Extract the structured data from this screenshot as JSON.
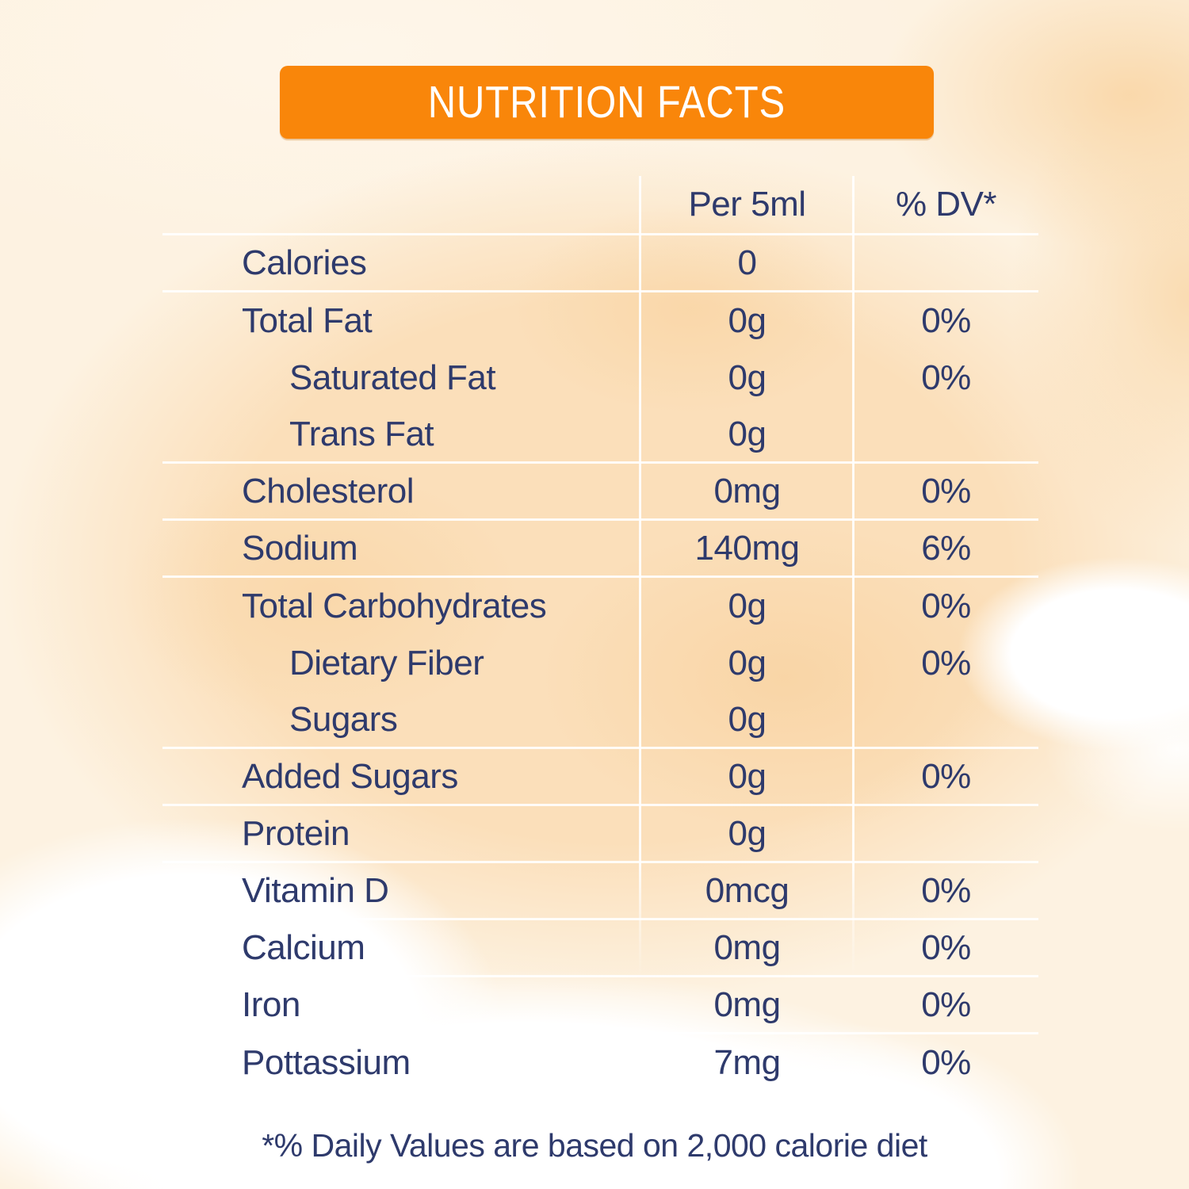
{
  "header": {
    "title": "NUTRITION FACTS"
  },
  "table": {
    "columns": {
      "amount": "Per 5ml",
      "dv": "% DV*"
    },
    "rows": [
      {
        "label": "Calories",
        "amount": "0",
        "dv": "",
        "indent": false,
        "line_after": true
      },
      {
        "label": "Total Fat",
        "amount": "0g",
        "dv": "0%",
        "indent": false,
        "line_after": false
      },
      {
        "label": "Saturated Fat",
        "amount": "0g",
        "dv": "0%",
        "indent": true,
        "line_after": false
      },
      {
        "label": "Trans Fat",
        "amount": "0g",
        "dv": "",
        "indent": true,
        "line_after": true
      },
      {
        "label": "Cholesterol",
        "amount": "0mg",
        "dv": "0%",
        "indent": false,
        "line_after": true
      },
      {
        "label": "Sodium",
        "amount": "140mg",
        "dv": "6%",
        "indent": false,
        "line_after": true
      },
      {
        "label": "Total Carbohydrates",
        "amount": "0g",
        "dv": "0%",
        "indent": false,
        "line_after": false
      },
      {
        "label": "Dietary Fiber",
        "amount": "0g",
        "dv": "0%",
        "indent": true,
        "line_after": false
      },
      {
        "label": "Sugars",
        "amount": "0g",
        "dv": "",
        "indent": true,
        "line_after": true
      },
      {
        "label": "Added Sugars",
        "amount": "0g",
        "dv": "0%",
        "indent": false,
        "line_after": true
      },
      {
        "label": "Protein",
        "amount": "0g",
        "dv": "",
        "indent": false,
        "line_after": true
      },
      {
        "label": "Vitamin D",
        "amount": "0mcg",
        "dv": "0%",
        "indent": false,
        "line_after": true
      },
      {
        "label": "Calcium",
        "amount": "0mg",
        "dv": "0%",
        "indent": false,
        "line_after": true
      },
      {
        "label": "Iron",
        "amount": "0mg",
        "dv": "0%",
        "indent": false,
        "line_after": true
      },
      {
        "label": "Pottassium",
        "amount": "7mg",
        "dv": "0%",
        "indent": false,
        "line_after": false
      }
    ]
  },
  "footnote": "*% Daily Values are based on 2,000 calorie diet",
  "colors": {
    "banner_orange": "#F9860A",
    "text_navy": "#2E3A6C",
    "divider_white": "#FFFFFF"
  }
}
